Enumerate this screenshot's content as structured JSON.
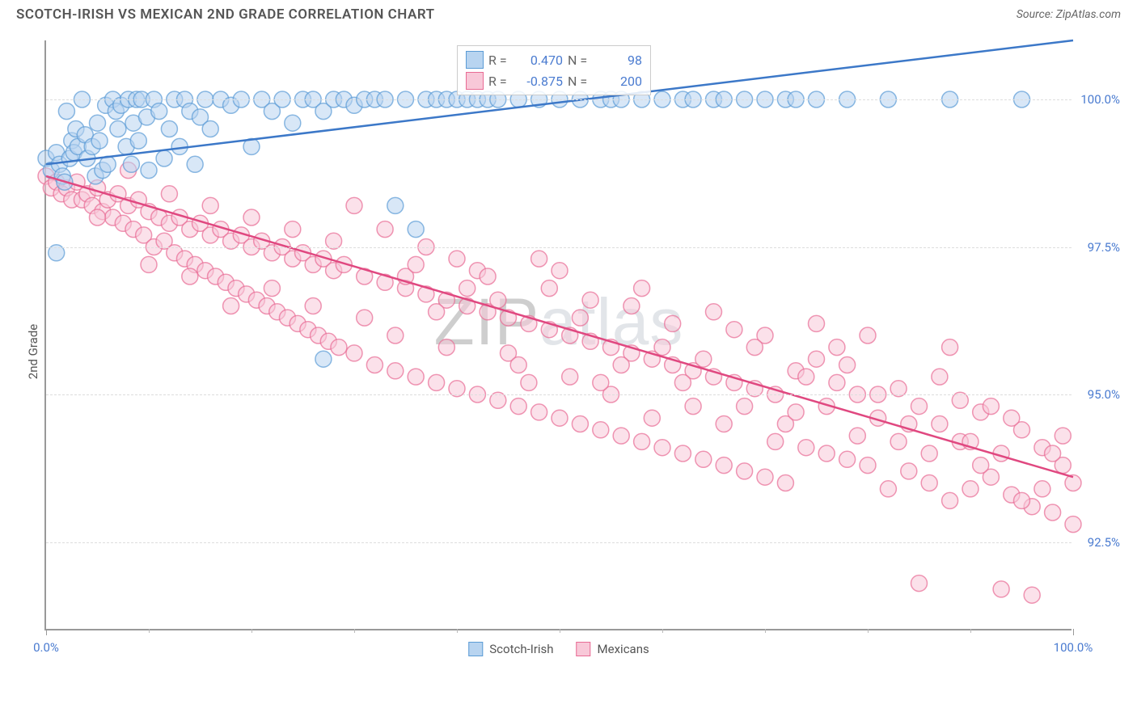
{
  "title": "SCOTCH-IRISH VS MEXICAN 2ND GRADE CORRELATION CHART",
  "source": "Source: ZipAtlas.com",
  "watermark": "ZIPatlas",
  "chart": {
    "type": "scatter",
    "ylabel": "2nd Grade",
    "xlim": [
      0,
      100
    ],
    "ylim": [
      91,
      101
    ],
    "xtick_labels": [
      {
        "pos": 0,
        "label": "0.0%"
      },
      {
        "pos": 100,
        "label": "100.0%"
      }
    ],
    "xtick_minor": [
      10,
      20,
      30,
      40,
      50,
      60,
      70,
      80,
      90
    ],
    "ytick_labels": [
      {
        "pos": 92.5,
        "label": "92.5%"
      },
      {
        "pos": 95.0,
        "label": "95.0%"
      },
      {
        "pos": 97.5,
        "label": "97.5%"
      },
      {
        "pos": 100.0,
        "label": "100.0%"
      }
    ],
    "background_color": "#ffffff",
    "grid_color": "#dddddd",
    "marker_radius": 10,
    "marker_stroke_width": 1.5,
    "trend_line_width": 2.5,
    "series": {
      "scotch_irish": {
        "label": "Scotch-Irish",
        "fill": "#b8d4f0",
        "stroke": "#5b9bd5",
        "fill_opacity": 0.55,
        "trend": {
          "x1": 0,
          "y1": 98.9,
          "x2": 100,
          "y2": 101.0,
          "color": "#3c78c8"
        },
        "stats": {
          "R": "0.470",
          "N": "98"
        },
        "points": [
          [
            0,
            99.0
          ],
          [
            0.5,
            98.8
          ],
          [
            1,
            99.1
          ],
          [
            1.3,
            98.9
          ],
          [
            1.6,
            98.7
          ],
          [
            1.8,
            98.6
          ],
          [
            2,
            99.8
          ],
          [
            2.3,
            99.0
          ],
          [
            2.5,
            99.3
          ],
          [
            2.7,
            99.1
          ],
          [
            2.9,
            99.5
          ],
          [
            3.1,
            99.2
          ],
          [
            3.5,
            100.0
          ],
          [
            3.8,
            99.4
          ],
          [
            4,
            99.0
          ],
          [
            4.5,
            99.2
          ],
          [
            4.8,
            98.7
          ],
          [
            5,
            99.6
          ],
          [
            5.2,
            99.3
          ],
          [
            5.5,
            98.8
          ],
          [
            5.8,
            99.9
          ],
          [
            6,
            98.9
          ],
          [
            6.5,
            100.0
          ],
          [
            6.8,
            99.8
          ],
          [
            7,
            99.5
          ],
          [
            7.3,
            99.9
          ],
          [
            7.8,
            99.2
          ],
          [
            8,
            100.0
          ],
          [
            8.3,
            98.9
          ],
          [
            8.5,
            99.6
          ],
          [
            8.8,
            100.0
          ],
          [
            9,
            99.3
          ],
          [
            9.3,
            100.0
          ],
          [
            9.8,
            99.7
          ],
          [
            10,
            98.8
          ],
          [
            10.5,
            100.0
          ],
          [
            11,
            99.8
          ],
          [
            11.5,
            99.0
          ],
          [
            12,
            99.5
          ],
          [
            12.5,
            100.0
          ],
          [
            13,
            99.2
          ],
          [
            13.5,
            100.0
          ],
          [
            14,
            99.8
          ],
          [
            14.5,
            98.9
          ],
          [
            15,
            99.7
          ],
          [
            15.5,
            100.0
          ],
          [
            16,
            99.5
          ],
          [
            17,
            100.0
          ],
          [
            18,
            99.9
          ],
          [
            19,
            100.0
          ],
          [
            20,
            99.2
          ],
          [
            21,
            100.0
          ],
          [
            22,
            99.8
          ],
          [
            23,
            100.0
          ],
          [
            24,
            99.6
          ],
          [
            25,
            100.0
          ],
          [
            26,
            100.0
          ],
          [
            27,
            99.8
          ],
          [
            28,
            100.0
          ],
          [
            29,
            100.0
          ],
          [
            30,
            99.9
          ],
          [
            31,
            100.0
          ],
          [
            32,
            100.0
          ],
          [
            33,
            100.0
          ],
          [
            34,
            98.2
          ],
          [
            35,
            100.0
          ],
          [
            36,
            97.8
          ],
          [
            37,
            100.0
          ],
          [
            38,
            100.0
          ],
          [
            39,
            100.0
          ],
          [
            40,
            100.0
          ],
          [
            41,
            100.0
          ],
          [
            42,
            100.0
          ],
          [
            43,
            100.0
          ],
          [
            44,
            100.0
          ],
          [
            46,
            100.0
          ],
          [
            48,
            100.0
          ],
          [
            50,
            100.0
          ],
          [
            52,
            100.0
          ],
          [
            54,
            100.0
          ],
          [
            55,
            100.0
          ],
          [
            56,
            100.0
          ],
          [
            58,
            100.0
          ],
          [
            60,
            100.0
          ],
          [
            62,
            100.0
          ],
          [
            63,
            100.0
          ],
          [
            65,
            100.0
          ],
          [
            66,
            100.0
          ],
          [
            68,
            100.0
          ],
          [
            70,
            100.0
          ],
          [
            72,
            100.0
          ],
          [
            73,
            100.0
          ],
          [
            75,
            100.0
          ],
          [
            78,
            100.0
          ],
          [
            82,
            100.0
          ],
          [
            88,
            100.0
          ],
          [
            95,
            100.0
          ],
          [
            27,
            95.6
          ],
          [
            1,
            97.4
          ]
        ]
      },
      "mexicans": {
        "label": "Mexicans",
        "fill": "#f8c8d8",
        "stroke": "#e86b94",
        "fill_opacity": 0.55,
        "trend": {
          "x1": 0,
          "y1": 98.7,
          "x2": 100,
          "y2": 93.6,
          "color": "#e04880"
        },
        "stats": {
          "R": "-0.875",
          "N": "200"
        },
        "points": [
          [
            0,
            98.7
          ],
          [
            0.5,
            98.5
          ],
          [
            1,
            98.6
          ],
          [
            1.5,
            98.4
          ],
          [
            2,
            98.5
          ],
          [
            2.5,
            98.3
          ],
          [
            3,
            98.6
          ],
          [
            3.5,
            98.3
          ],
          [
            4,
            98.4
          ],
          [
            4.5,
            98.2
          ],
          [
            5,
            98.5
          ],
          [
            5.5,
            98.1
          ],
          [
            6,
            98.3
          ],
          [
            6.5,
            98.0
          ],
          [
            7,
            98.4
          ],
          [
            7.5,
            97.9
          ],
          [
            8,
            98.2
          ],
          [
            8.5,
            97.8
          ],
          [
            9,
            98.3
          ],
          [
            9.5,
            97.7
          ],
          [
            10,
            98.1
          ],
          [
            10.5,
            97.5
          ],
          [
            11,
            98.0
          ],
          [
            11.5,
            97.6
          ],
          [
            12,
            97.9
          ],
          [
            12.5,
            97.4
          ],
          [
            13,
            98.0
          ],
          [
            13.5,
            97.3
          ],
          [
            14,
            97.8
          ],
          [
            14.5,
            97.2
          ],
          [
            15,
            97.9
          ],
          [
            15.5,
            97.1
          ],
          [
            16,
            97.7
          ],
          [
            16.5,
            97.0
          ],
          [
            17,
            97.8
          ],
          [
            17.5,
            96.9
          ],
          [
            18,
            97.6
          ],
          [
            18.5,
            96.8
          ],
          [
            19,
            97.7
          ],
          [
            19.5,
            96.7
          ],
          [
            20,
            97.5
          ],
          [
            20.5,
            96.6
          ],
          [
            21,
            97.6
          ],
          [
            21.5,
            96.5
          ],
          [
            22,
            97.4
          ],
          [
            22.5,
            96.4
          ],
          [
            23,
            97.5
          ],
          [
            23.5,
            96.3
          ],
          [
            24,
            97.3
          ],
          [
            24.5,
            96.2
          ],
          [
            25,
            97.4
          ],
          [
            25.5,
            96.1
          ],
          [
            26,
            97.2
          ],
          [
            26.5,
            96.0
          ],
          [
            27,
            97.3
          ],
          [
            27.5,
            95.9
          ],
          [
            28,
            97.1
          ],
          [
            28.5,
            95.8
          ],
          [
            29,
            97.2
          ],
          [
            30,
            95.7
          ],
          [
            31,
            97.0
          ],
          [
            32,
            95.5
          ],
          [
            33,
            96.9
          ],
          [
            34,
            95.4
          ],
          [
            35,
            96.8
          ],
          [
            36,
            95.3
          ],
          [
            37,
            96.7
          ],
          [
            38,
            95.2
          ],
          [
            39,
            96.6
          ],
          [
            40,
            95.1
          ],
          [
            41,
            96.5
          ],
          [
            42,
            95.0
          ],
          [
            43,
            96.4
          ],
          [
            44,
            94.9
          ],
          [
            45,
            96.3
          ],
          [
            46,
            94.8
          ],
          [
            47,
            96.2
          ],
          [
            48,
            94.7
          ],
          [
            49,
            96.1
          ],
          [
            50,
            94.6
          ],
          [
            51,
            96.0
          ],
          [
            52,
            94.5
          ],
          [
            53,
            95.9
          ],
          [
            54,
            94.4
          ],
          [
            55,
            95.8
          ],
          [
            56,
            94.3
          ],
          [
            57,
            95.7
          ],
          [
            58,
            94.2
          ],
          [
            59,
            95.6
          ],
          [
            60,
            94.1
          ],
          [
            61,
            95.5
          ],
          [
            62,
            94.0
          ],
          [
            63,
            95.4
          ],
          [
            64,
            93.9
          ],
          [
            65,
            95.3
          ],
          [
            66,
            93.8
          ],
          [
            67,
            95.2
          ],
          [
            68,
            93.7
          ],
          [
            69,
            95.1
          ],
          [
            70,
            93.6
          ],
          [
            71,
            95.0
          ],
          [
            72,
            93.5
          ],
          [
            73,
            95.4
          ],
          [
            74,
            94.1
          ],
          [
            75,
            95.6
          ],
          [
            76,
            94.0
          ],
          [
            77,
            95.2
          ],
          [
            78,
            93.9
          ],
          [
            79,
            95.0
          ],
          [
            80,
            93.8
          ],
          [
            81,
            94.6
          ],
          [
            82,
            93.4
          ],
          [
            83,
            95.1
          ],
          [
            84,
            93.7
          ],
          [
            85,
            94.8
          ],
          [
            86,
            93.5
          ],
          [
            87,
            94.5
          ],
          [
            88,
            93.2
          ],
          [
            89,
            94.2
          ],
          [
            90,
            93.4
          ],
          [
            91,
            94.7
          ],
          [
            92,
            93.6
          ],
          [
            93,
            94.0
          ],
          [
            94,
            93.3
          ],
          [
            95,
            94.4
          ],
          [
            96,
            93.1
          ],
          [
            97,
            94.1
          ],
          [
            98,
            93.0
          ],
          [
            99,
            94.3
          ],
          [
            100,
            93.5
          ],
          [
            85,
            91.8
          ],
          [
            93,
            91.7
          ],
          [
            96,
            91.6
          ],
          [
            75,
            96.2
          ],
          [
            80,
            96.0
          ],
          [
            88,
            95.8
          ],
          [
            30,
            98.2
          ],
          [
            35,
            97.0
          ],
          [
            40,
            97.3
          ],
          [
            42,
            97.1
          ],
          [
            38,
            96.4
          ],
          [
            45,
            95.7
          ],
          [
            50,
            97.1
          ],
          [
            52,
            96.3
          ],
          [
            55,
            95.0
          ],
          [
            58,
            96.8
          ],
          [
            60,
            95.8
          ],
          [
            62,
            95.2
          ],
          [
            65,
            96.4
          ],
          [
            68,
            94.8
          ],
          [
            70,
            96.0
          ],
          [
            72,
            94.5
          ],
          [
            48,
            97.3
          ],
          [
            33,
            97.8
          ],
          [
            37,
            97.5
          ],
          [
            41,
            96.8
          ],
          [
            43,
            97.0
          ],
          [
            47,
            95.2
          ],
          [
            51,
            95.3
          ],
          [
            53,
            96.6
          ],
          [
            56,
            95.5
          ],
          [
            59,
            94.6
          ],
          [
            61,
            96.2
          ],
          [
            64,
            95.6
          ],
          [
            66,
            94.5
          ],
          [
            69,
            95.8
          ],
          [
            71,
            94.2
          ],
          [
            74,
            95.3
          ],
          [
            76,
            94.8
          ],
          [
            78,
            95.5
          ],
          [
            81,
            95.0
          ],
          [
            83,
            94.2
          ],
          [
            86,
            94.0
          ],
          [
            89,
            94.9
          ],
          [
            91,
            93.8
          ],
          [
            94,
            94.6
          ],
          [
            97,
            93.4
          ],
          [
            99,
            93.8
          ],
          [
            5,
            98.0
          ],
          [
            8,
            98.8
          ],
          [
            10,
            97.2
          ],
          [
            12,
            98.4
          ],
          [
            14,
            97.0
          ],
          [
            16,
            98.2
          ],
          [
            18,
            96.5
          ],
          [
            20,
            98.0
          ],
          [
            22,
            96.8
          ],
          [
            24,
            97.8
          ],
          [
            26,
            96.5
          ],
          [
            28,
            97.6
          ],
          [
            31,
            96.3
          ],
          [
            34,
            96.0
          ],
          [
            36,
            97.2
          ],
          [
            39,
            95.8
          ],
          [
            44,
            96.6
          ],
          [
            46,
            95.5
          ],
          [
            49,
            96.8
          ],
          [
            54,
            95.2
          ],
          [
            57,
            96.5
          ],
          [
            63,
            94.8
          ],
          [
            67,
            96.1
          ],
          [
            73,
            94.7
          ],
          [
            77,
            95.8
          ],
          [
            79,
            94.3
          ],
          [
            84,
            94.5
          ],
          [
            87,
            95.3
          ],
          [
            90,
            94.2
          ],
          [
            92,
            94.8
          ],
          [
            95,
            93.2
          ],
          [
            98,
            94.0
          ],
          [
            100,
            92.8
          ]
        ]
      }
    }
  },
  "stats_box": {
    "r_label": "R =",
    "n_label": "N ="
  }
}
